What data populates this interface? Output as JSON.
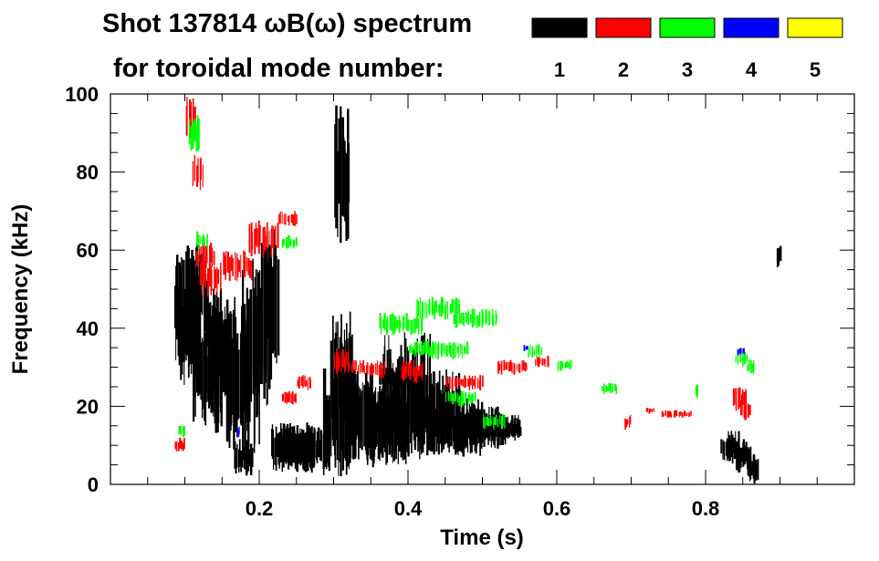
{
  "chart_data": {
    "type": "heatmap",
    "title_line1": "Shot 137814 ωB(ω) spectrum",
    "title_line2": "for toroidal mode number:",
    "xlabel": "Time (s)",
    "ylabel": "Frequency (kHz)",
    "xlim": [
      0.0,
      1.0
    ],
    "ylim": [
      0,
      100
    ],
    "xticks": [
      0.2,
      0.4,
      0.6,
      0.8
    ],
    "xtick_labels": [
      "0.2",
      "0.4",
      "0.6",
      "0.8"
    ],
    "yticks": [
      0,
      20,
      40,
      60,
      80,
      100
    ],
    "ytick_labels": [
      "0",
      "20",
      "40",
      "60",
      "80",
      "100"
    ],
    "grid": false,
    "legend_position": "top-right",
    "legend": [
      {
        "label": "1",
        "color": "#000000"
      },
      {
        "label": "2",
        "color": "#ff0000"
      },
      {
        "label": "3",
        "color": "#00ff00"
      },
      {
        "label": "4",
        "color": "#0000ff"
      },
      {
        "label": "5",
        "color": "#ffff00"
      }
    ],
    "series": [
      {
        "mode": "1",
        "color": "#000000",
        "blobs": [
          [
            0.085,
            0.115,
            30,
            60
          ],
          [
            0.09,
            0.12,
            25,
            50
          ],
          [
            0.1,
            0.13,
            35,
            62
          ],
          [
            0.11,
            0.14,
            15,
            40
          ],
          [
            0.125,
            0.15,
            20,
            55
          ],
          [
            0.14,
            0.17,
            10,
            50
          ],
          [
            0.155,
            0.185,
            5,
            45
          ],
          [
            0.165,
            0.19,
            2,
            12
          ],
          [
            0.175,
            0.2,
            8,
            58
          ],
          [
            0.19,
            0.215,
            20,
            62
          ],
          [
            0.205,
            0.225,
            25,
            66
          ],
          [
            0.215,
            0.245,
            3,
            16
          ],
          [
            0.225,
            0.27,
            5,
            16
          ],
          [
            0.24,
            0.29,
            3,
            15
          ],
          [
            0.285,
            0.33,
            2,
            30
          ],
          [
            0.295,
            0.325,
            15,
            45
          ],
          [
            0.3,
            0.32,
            60,
            98
          ],
          [
            0.32,
            0.37,
            5,
            30
          ],
          [
            0.34,
            0.4,
            4,
            25
          ],
          [
            0.365,
            0.43,
            5,
            40
          ],
          [
            0.4,
            0.47,
            8,
            30
          ],
          [
            0.43,
            0.5,
            7,
            22
          ],
          [
            0.47,
            0.53,
            9,
            20
          ],
          [
            0.5,
            0.55,
            11,
            18
          ],
          [
            0.525,
            0.55,
            12,
            16
          ],
          [
            0.36,
            0.42,
            25,
            30
          ],
          [
            0.82,
            0.845,
            5,
            14
          ],
          [
            0.84,
            0.86,
            3,
            12
          ],
          [
            0.855,
            0.87,
            0,
            8
          ],
          [
            0.895,
            0.9,
            55,
            62
          ]
        ]
      },
      {
        "mode": "2",
        "color": "#ff0000",
        "blobs": [
          [
            0.1,
            0.115,
            88,
            100
          ],
          [
            0.11,
            0.125,
            75,
            85
          ],
          [
            0.115,
            0.14,
            55,
            62
          ],
          [
            0.12,
            0.15,
            48,
            58
          ],
          [
            0.15,
            0.19,
            52,
            60
          ],
          [
            0.185,
            0.225,
            58,
            68
          ],
          [
            0.225,
            0.25,
            66,
            70
          ],
          [
            0.23,
            0.25,
            20,
            24
          ],
          [
            0.25,
            0.27,
            24,
            28
          ],
          [
            0.3,
            0.32,
            28,
            35
          ],
          [
            0.32,
            0.34,
            28,
            32
          ],
          [
            0.34,
            0.37,
            27,
            32
          ],
          [
            0.39,
            0.42,
            26,
            32
          ],
          [
            0.45,
            0.5,
            24,
            28
          ],
          [
            0.52,
            0.56,
            28,
            32
          ],
          [
            0.57,
            0.59,
            30,
            33
          ],
          [
            0.69,
            0.7,
            14,
            18
          ],
          [
            0.72,
            0.73,
            18,
            20
          ],
          [
            0.74,
            0.78,
            17,
            19
          ],
          [
            0.835,
            0.855,
            18,
            25
          ],
          [
            0.845,
            0.86,
            16,
            22
          ],
          [
            0.085,
            0.1,
            8,
            12
          ]
        ]
      },
      {
        "mode": "3",
        "color": "#00ff00",
        "blobs": [
          [
            0.105,
            0.12,
            85,
            95
          ],
          [
            0.115,
            0.13,
            60,
            65
          ],
          [
            0.23,
            0.25,
            60,
            64
          ],
          [
            0.36,
            0.42,
            38,
            44
          ],
          [
            0.41,
            0.47,
            42,
            48
          ],
          [
            0.46,
            0.52,
            40,
            45
          ],
          [
            0.4,
            0.48,
            32,
            37
          ],
          [
            0.45,
            0.49,
            20,
            24
          ],
          [
            0.5,
            0.53,
            14,
            18
          ],
          [
            0.56,
            0.58,
            32,
            36
          ],
          [
            0.6,
            0.62,
            29,
            32
          ],
          [
            0.66,
            0.68,
            23,
            26
          ],
          [
            0.84,
            0.855,
            30,
            34
          ],
          [
            0.855,
            0.865,
            28,
            32
          ],
          [
            0.785,
            0.79,
            22,
            26
          ],
          [
            0.09,
            0.1,
            12,
            16
          ]
        ]
      },
      {
        "mode": "4",
        "color": "#0000ff",
        "blobs": [
          [
            0.842,
            0.852,
            33,
            35
          ],
          [
            0.17,
            0.173,
            12,
            15
          ],
          [
            0.555,
            0.56,
            34,
            36
          ]
        ]
      },
      {
        "mode": "5",
        "color": "#ffff00",
        "blobs": []
      }
    ]
  }
}
